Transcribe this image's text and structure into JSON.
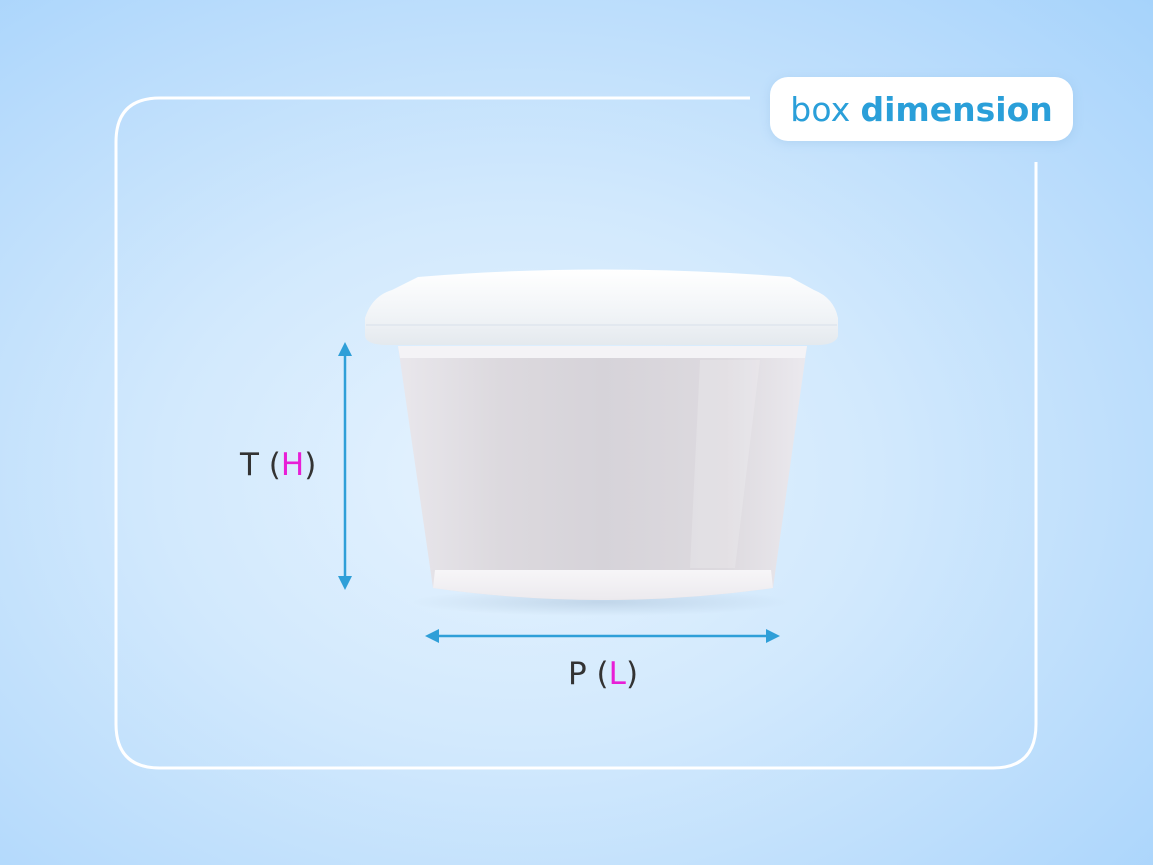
{
  "badge": {
    "light_text": "box",
    "bold_text": "dimension"
  },
  "dimensions": {
    "height": {
      "prefix": "T (",
      "accent": "H",
      "suffix": ")"
    },
    "length": {
      "prefix": "P (",
      "accent": "L",
      "suffix": ")"
    }
  },
  "colors": {
    "frame_line": "#ffffff",
    "arrow": "#2f9fd8",
    "accent_letter": "#e81ed6",
    "label_text": "#333333",
    "badge_text": "#2a9fd9"
  },
  "icons": {
    "product": "plastic-food-container-with-lid-icon",
    "arrows": "double-headed-arrow-icon"
  }
}
